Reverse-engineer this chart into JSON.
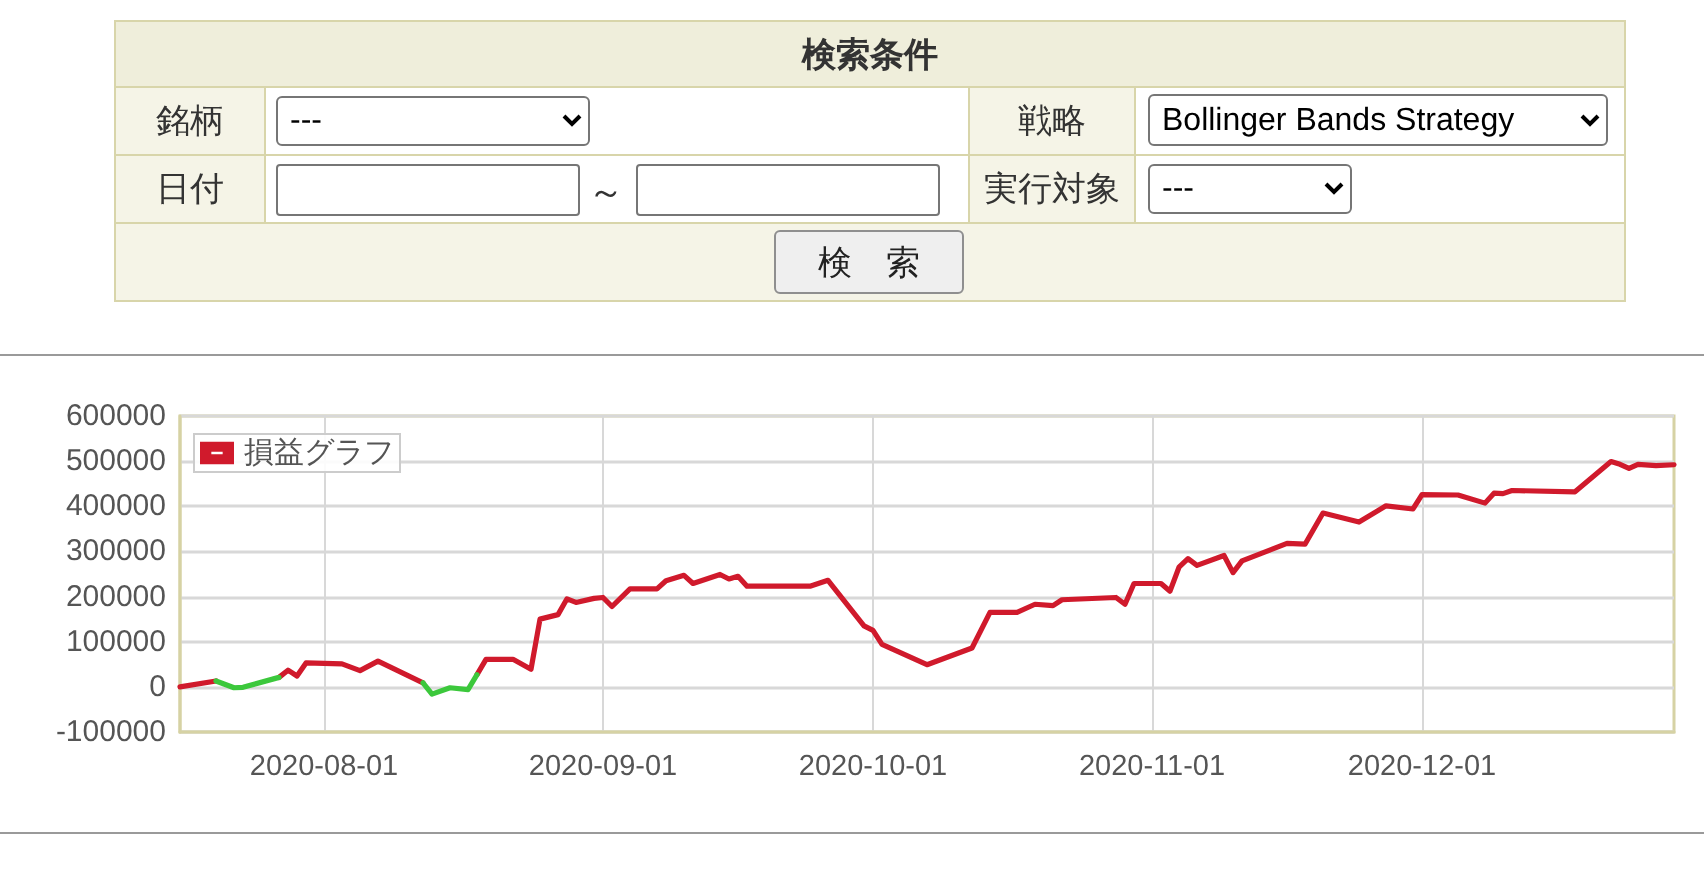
{
  "chart_data": {
    "type": "line",
    "annotations": [
      "検索条件",
      "銘柄",
      "---",
      "戦略",
      "Bollinger Bands Strategy",
      "日付",
      "～",
      "実行対象",
      "---",
      "検　索"
    ],
    "x": [
      "2020-07-16",
      "2020-07-20",
      "2020-07-22",
      "2020-07-23",
      "2020-07-27",
      "2020-07-28",
      "2020-07-29",
      "2020-07-30",
      "2020-08-03",
      "2020-08-05",
      "2020-08-07",
      "2020-08-12",
      "2020-08-13",
      "2020-08-15",
      "2020-08-17",
      "2020-08-18",
      "2020-08-19",
      "2020-08-22",
      "2020-08-24",
      "2020-08-25",
      "2020-08-27",
      "2020-08-28",
      "2020-08-29",
      "2020-08-31",
      "2020-09-01",
      "2020-09-02",
      "2020-09-04",
      "2020-09-07",
      "2020-09-08",
      "2020-09-10",
      "2020-09-11",
      "2020-09-14",
      "2020-09-15",
      "2020-09-16",
      "2020-09-17",
      "2020-09-24",
      "2020-09-26",
      "2020-09-30",
      "2020-10-01",
      "2020-10-02",
      "2020-10-07",
      "2020-10-12",
      "2020-10-14",
      "2020-10-17",
      "2020-10-19",
      "2020-10-21",
      "2020-10-22",
      "2020-10-28",
      "2020-10-29",
      "2020-10-30",
      "2020-11-02",
      "2020-11-03",
      "2020-11-04",
      "2020-11-05",
      "2020-11-06",
      "2020-11-09",
      "2020-11-10",
      "2020-11-11",
      "2020-11-16",
      "2020-11-18",
      "2020-11-20",
      "2020-11-24",
      "2020-11-27",
      "2020-11-30",
      "2020-12-01",
      "2020-12-05",
      "2020-12-08",
      "2020-12-09",
      "2020-12-10",
      "2020-12-11",
      "2020-12-18",
      "2020-12-22",
      "2020-12-23",
      "2020-12-24",
      "2020-12-25",
      "2020-12-27",
      "2020-12-29"
    ],
    "series": [
      {
        "name": "損益グラフ",
        "color": "#d01a2c",
        "values": [
          0,
          13000,
          null,
          null,
          21000,
          37000,
          24000,
          53000,
          51000,
          36000,
          57000,
          9000,
          null,
          null,
          null,
          27000,
          61000,
          61000,
          39000,
          150000,
          160000,
          195000,
          187000,
          196000,
          198000,
          178000,
          217000,
          217000,
          235000,
          247000,
          229000,
          249000,
          239000,
          245000,
          223000,
          223000,
          236000,
          135000,
          125000,
          94000,
          49000,
          86000,
          165000,
          165000,
          183000,
          180000,
          193000,
          198000,
          183000,
          229000,
          229000,
          212000,
          265000,
          284000,
          269000,
          291000,
          253000,
          279000,
          318000,
          316000,
          385000,
          365000,
          401000,
          394000,
          426000,
          425000,
          407000,
          429000,
          428000,
          435000,
          432000,
          499000,
          493000,
          484000,
          493000,
          490000,
          492000
        ]
      },
      {
        "color": "#3cc83c",
        "values": [
          null,
          13000,
          -2000,
          -1000,
          21000,
          null,
          null,
          null,
          null,
          null,
          null,
          9000,
          -16000,
          -2000,
          -6000,
          27000,
          null,
          null,
          null,
          null,
          null,
          null,
          null,
          null,
          null,
          null,
          null,
          null,
          null,
          null,
          null,
          null,
          null,
          null,
          null,
          null,
          null,
          null,
          null,
          null,
          null,
          null,
          null,
          null,
          null,
          null,
          null,
          null,
          null,
          null,
          null,
          null,
          null,
          null,
          null,
          null,
          null,
          null,
          null,
          null,
          null,
          null,
          null,
          null,
          null,
          null,
          null,
          null,
          null,
          null,
          null,
          null,
          null,
          null,
          null,
          null,
          null
        ]
      }
    ],
    "xlim": [
      "2020-07-16",
      "2020-12-29"
    ],
    "xticks": [
      "2020-08-01",
      "2020-09-01",
      "2020-10-01",
      "2020-11-01",
      "2020-12-01"
    ],
    "ylim": [
      -100000,
      600000
    ],
    "yticks": [
      -100000,
      0,
      100000,
      200000,
      300000,
      400000,
      500000,
      600000
    ],
    "grid": true,
    "legend": "top left"
  }
}
